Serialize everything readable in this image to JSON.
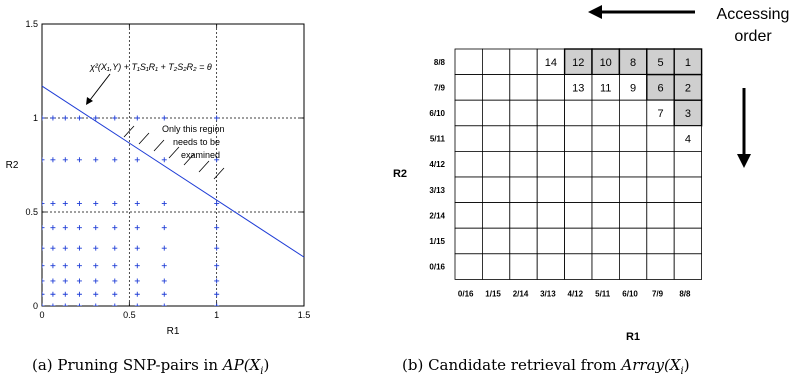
{
  "figure_a": {
    "caption_prefix": "(a) Pruning SNP-pairs in ",
    "caption_math": "AP(X",
    "caption_sub": "i",
    "caption_close": ")",
    "equation": "χ²(X₁,Y) + T₁S₁R₁ + T₂S₂R₂ = θ",
    "region_note": [
      "Only this region",
      "needs to be",
      "examined"
    ],
    "chart_data": {
      "type": "scatter",
      "xlabel": "R1",
      "ylabel": "R2",
      "xlim": [
        0,
        1.5
      ],
      "ylim": [
        0,
        1.5
      ],
      "xticks": [
        "0",
        "0.5",
        "1",
        "1.5"
      ],
      "yticks": [
        "0",
        "0.5",
        "1",
        "1.5"
      ],
      "grid_dashed_at": [
        0.5,
        1
      ],
      "line": {
        "x": [
          0,
          1.5
        ],
        "y": [
          1.17,
          0.26
        ],
        "color": "#1f3dd6"
      },
      "points_x": [
        0,
        0.0625,
        0.1333,
        0.2143,
        0.3077,
        0.4167,
        0.5455,
        0.7,
        1
      ],
      "points_y": [
        0,
        0.0625,
        0.1333,
        0.2143,
        0.3077,
        0.4167,
        0.5455,
        0.7778,
        1
      ],
      "point_color": "#1f3dd6"
    }
  },
  "figure_b": {
    "caption_prefix": "(b) Candidate retrieval from ",
    "caption_math": "Array(X",
    "caption_sub": "i",
    "caption_close": ")",
    "accessing_label_1": "Accessing",
    "accessing_label_2": "order",
    "xlabel": "R1",
    "ylabel": "R2",
    "col_labels": [
      "0/16",
      "1/15",
      "2/14",
      "3/13",
      "4/12",
      "5/11",
      "6/10",
      "7/9",
      "8/8"
    ],
    "row_labels": [
      "8/8",
      "7/9",
      "6/10",
      "5/11",
      "4/12",
      "3/13",
      "2/14",
      "1/15",
      "0/16"
    ],
    "cells": [
      {
        "row": 0,
        "col": 3,
        "text": "14",
        "shaded": false
      },
      {
        "row": 0,
        "col": 4,
        "text": "12",
        "shaded": true
      },
      {
        "row": 0,
        "col": 5,
        "text": "10",
        "shaded": true
      },
      {
        "row": 0,
        "col": 6,
        "text": "8",
        "shaded": true
      },
      {
        "row": 0,
        "col": 7,
        "text": "5",
        "shaded": true
      },
      {
        "row": 0,
        "col": 8,
        "text": "1",
        "shaded": true
      },
      {
        "row": 1,
        "col": 4,
        "text": "13",
        "shaded": false
      },
      {
        "row": 1,
        "col": 5,
        "text": "11",
        "shaded": false
      },
      {
        "row": 1,
        "col": 6,
        "text": "9",
        "shaded": false
      },
      {
        "row": 1,
        "col": 7,
        "text": "6",
        "shaded": true
      },
      {
        "row": 1,
        "col": 8,
        "text": "2",
        "shaded": true
      },
      {
        "row": 2,
        "col": 7,
        "text": "7",
        "shaded": false
      },
      {
        "row": 2,
        "col": 8,
        "text": "3",
        "shaded": true
      },
      {
        "row": 3,
        "col": 8,
        "text": "4",
        "shaded": false
      }
    ]
  }
}
